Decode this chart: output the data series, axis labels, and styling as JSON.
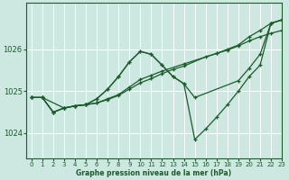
{
  "bg_color": "#cce8e0",
  "grid_color": "#ffffff",
  "line_color": "#1a5c2a",
  "marker_color": "#1a5c2a",
  "xlabel": "Graphe pression niveau de la mer (hPa)",
  "xlim": [
    -0.5,
    23
  ],
  "ylim": [
    1023.4,
    1027.1
  ],
  "yticks": [
    1024,
    1025,
    1026
  ],
  "xticks": [
    0,
    1,
    2,
    3,
    4,
    5,
    6,
    7,
    8,
    9,
    10,
    11,
    12,
    13,
    14,
    15,
    16,
    17,
    18,
    19,
    20,
    21,
    22,
    23
  ],
  "series": [
    {
      "x": [
        0,
        1,
        3,
        4,
        5,
        6,
        7,
        8,
        9,
        10,
        11,
        12,
        14,
        17,
        18,
        19,
        20,
        21,
        22,
        23
      ],
      "y": [
        1024.85,
        1024.85,
        1024.6,
        1024.65,
        1024.68,
        1024.72,
        1024.82,
        1024.92,
        1025.1,
        1025.28,
        1025.38,
        1025.48,
        1025.65,
        1025.9,
        1026.0,
        1026.1,
        1026.3,
        1026.45,
        1026.62,
        1026.7
      ]
    },
    {
      "x": [
        0,
        1,
        2,
        3,
        4,
        5,
        6,
        7,
        8,
        9,
        10,
        11,
        12,
        13,
        14,
        16,
        17,
        18,
        19,
        20,
        21,
        22,
        23
      ],
      "y": [
        1024.85,
        1024.85,
        1024.5,
        1024.6,
        1024.65,
        1024.68,
        1024.72,
        1024.8,
        1024.9,
        1025.05,
        1025.2,
        1025.3,
        1025.42,
        1025.52,
        1025.6,
        1025.82,
        1025.9,
        1025.98,
        1026.08,
        1026.2,
        1026.3,
        1026.38,
        1026.45
      ]
    },
    {
      "x": [
        0,
        1,
        2,
        3,
        4,
        5,
        6,
        7,
        8,
        9,
        10,
        11,
        12,
        13,
        14,
        15,
        19,
        20,
        21,
        22,
        23
      ],
      "y": [
        1024.85,
        1024.85,
        1024.5,
        1024.6,
        1024.65,
        1024.68,
        1024.82,
        1025.05,
        1025.35,
        1025.7,
        1025.95,
        1025.88,
        1025.62,
        1025.35,
        1025.18,
        1024.85,
        1025.25,
        1025.55,
        1025.88,
        1026.62,
        1026.7
      ]
    },
    {
      "x": [
        0,
        1,
        2,
        3,
        4,
        5,
        6,
        7,
        8,
        9,
        10,
        11,
        12,
        13,
        14,
        15,
        16,
        17,
        18,
        19,
        20,
        21,
        22,
        23
      ],
      "y": [
        1024.85,
        1024.85,
        1024.5,
        1024.6,
        1024.65,
        1024.68,
        1024.82,
        1025.05,
        1025.35,
        1025.7,
        1025.95,
        1025.88,
        1025.62,
        1025.35,
        1025.18,
        1023.85,
        1024.1,
        1024.38,
        1024.68,
        1025.0,
        1025.35,
        1025.62,
        1026.62,
        1026.7
      ]
    }
  ]
}
